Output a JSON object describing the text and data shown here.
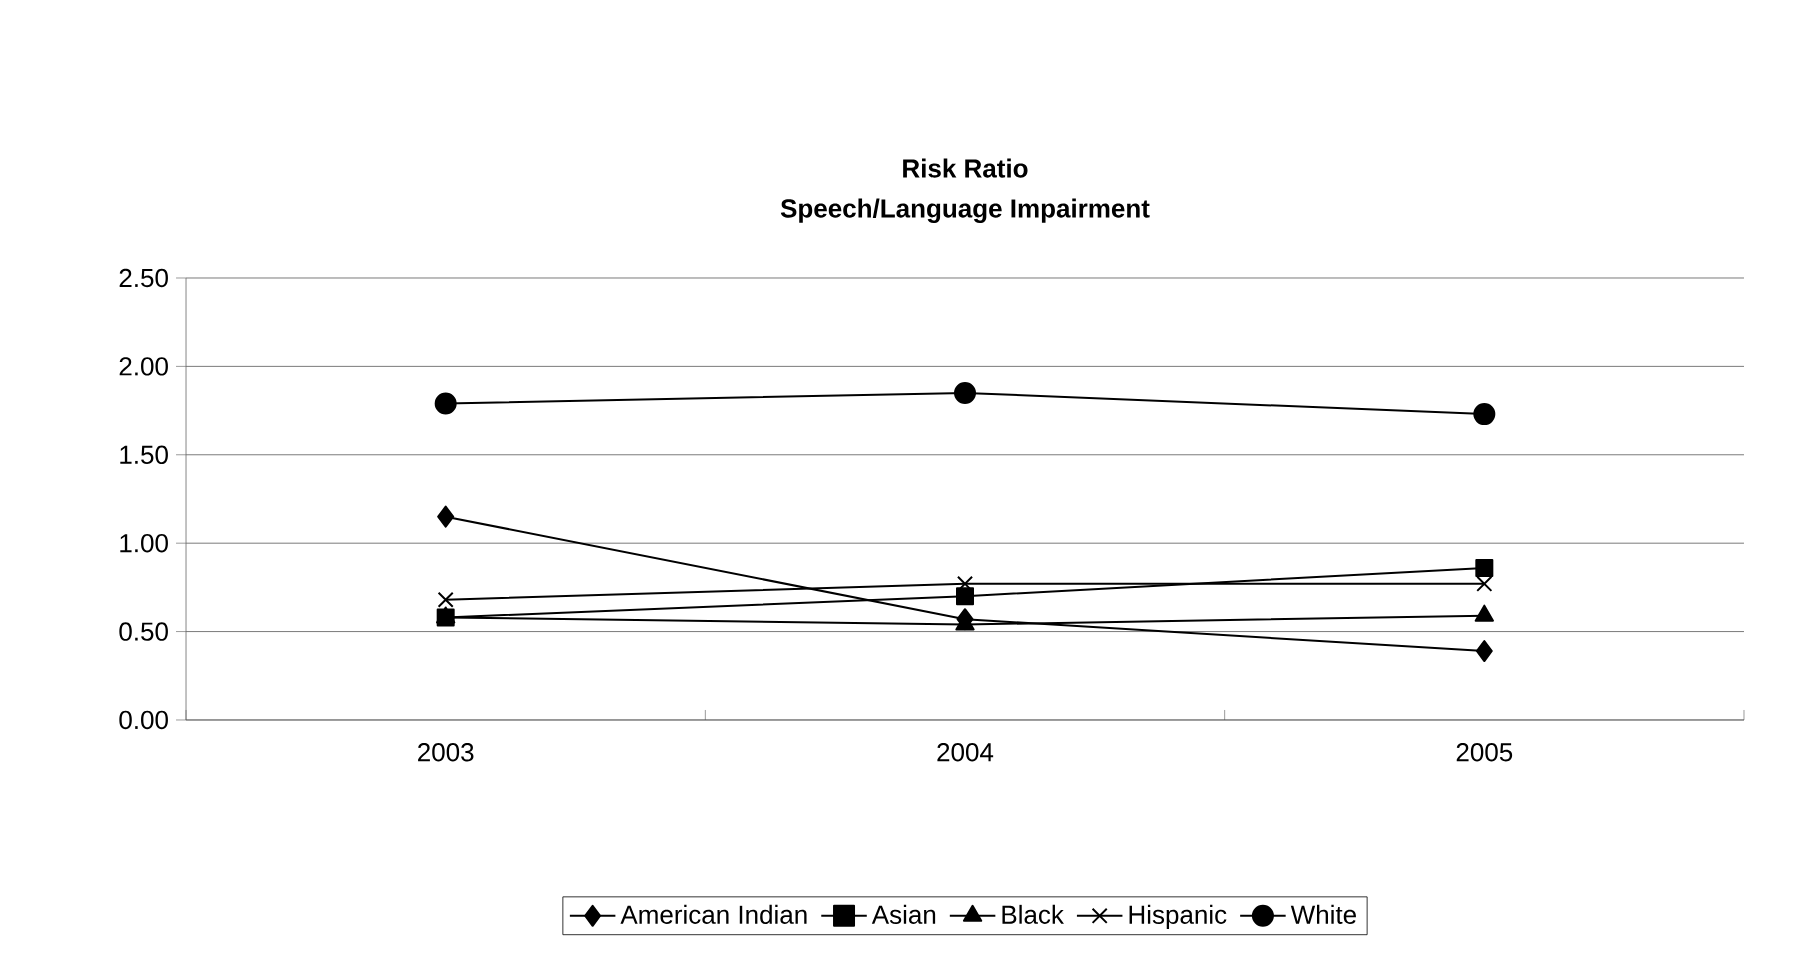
{
  "chart_data": {
    "type": "line",
    "title": "Risk Ratio",
    "subtitle": "Speech/Language Impairment",
    "categories": [
      "2003",
      "2004",
      "2005"
    ],
    "series": [
      {
        "name": "American Indian",
        "color": "#000000",
        "marker": "diamond",
        "values": [
          1.15,
          0.57,
          0.39
        ]
      },
      {
        "name": "Asian",
        "color": "#000000",
        "marker": "square",
        "values": [
          0.58,
          0.7,
          0.86
        ]
      },
      {
        "name": "Black",
        "color": "#000000",
        "marker": "triangle",
        "values": [
          0.58,
          0.54,
          0.59
        ]
      },
      {
        "name": "Hispanic",
        "color": "#000000",
        "marker": "cross",
        "values": [
          0.68,
          0.77,
          0.77
        ]
      },
      {
        "name": "White",
        "color": "#000000",
        "marker": "circle",
        "values": [
          1.79,
          1.85,
          1.73
        ]
      }
    ],
    "ylim": [
      0,
      2.5
    ],
    "yticks": [
      {
        "value": 0,
        "label": "0.00"
      },
      {
        "value": 0.5,
        "label": "0.50"
      },
      {
        "value": 1,
        "label": "1.00"
      },
      {
        "value": 1.5,
        "label": "1.50"
      },
      {
        "value": 2,
        "label": "2.00"
      },
      {
        "value": 2.5,
        "label": "2.50"
      }
    ],
    "grid": "y",
    "legend": "bottom",
    "line_style": "solid"
  }
}
